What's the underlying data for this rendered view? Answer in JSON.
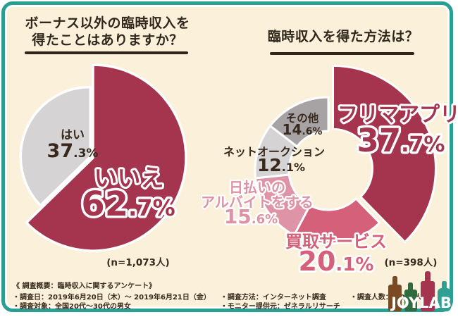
{
  "colors": {
    "crimson": "#A5344F",
    "pink": "#D4607A",
    "light_pink": "#DE93A6",
    "light_gray": "#D6D3D4",
    "dark_gray": "#A7A3A4",
    "cream_background": "#FBF0DA",
    "teal_border": "#2B9E92",
    "text_dark": "#38291C"
  },
  "left_section": {
    "title_line1": "ボーナス以外の臨時収入を",
    "title_line2": "得たことはありますか？",
    "n_label": "(n=1,073人)"
  },
  "right_section": {
    "title": "臨時収入を得た方法は？",
    "n_label": "(n=398人)"
  },
  "chart_data": [
    {
      "type": "pie",
      "question": "ボーナス以外の臨時収入を得たことはありますか？",
      "n": 1073,
      "slices": [
        {
          "label": "いいえ",
          "value": 62.7,
          "pct_int": "62",
          "pct_dec": ".7%",
          "color": "#A5344F"
        },
        {
          "label": "はい",
          "value": 37.3,
          "pct_int": "37",
          "pct_dec": ".3%",
          "color": "#D6D3D4"
        }
      ]
    },
    {
      "type": "donut",
      "question": "臨時収入を得た方法は？",
      "n": 398,
      "slices": [
        {
          "label": "フリマアプリ",
          "value": 37.7,
          "pct_int": "37",
          "pct_dec": ".7%",
          "color": "#A5344F"
        },
        {
          "label": "買取サービス",
          "value": 20.1,
          "pct_int": "20",
          "pct_dec": ".1%",
          "color": "#D4607A"
        },
        {
          "label": "日払いのアルバイトをする",
          "label_lines": [
            "日払いの",
            "アルバイトをする"
          ],
          "value": 15.6,
          "pct_int": "15",
          "pct_dec": ".6%",
          "color": "#DE93A6"
        },
        {
          "label": "ネットオークション",
          "value": 12.1,
          "pct_int": "12",
          "pct_dec": ".1%",
          "color": "#D6D3D4"
        },
        {
          "label": "その他",
          "value": 14.6,
          "pct_int": "14",
          "pct_dec": ".6%",
          "color": "#A7A3A4"
        }
      ]
    }
  ],
  "footer": {
    "heading": "《 調査概要：臨時収入に関するアンケート》",
    "col1": [
      "・調査日：2019年6月20日（木）～ 2019年6月21日（金）",
      "・調査対象：全国20代～30代の男女"
    ],
    "col2": [
      "・調査方法：インターネット調査",
      "・モニター提供元：ゼネラルリサーチ"
    ],
    "col3": [
      "・調査人数：1,073人"
    ]
  },
  "logo": {
    "name": "JOYLAB",
    "bottle_colors": [
      "#7B4A22",
      "#2F6B3F",
      "#A5344F",
      "#2EA094"
    ]
  }
}
